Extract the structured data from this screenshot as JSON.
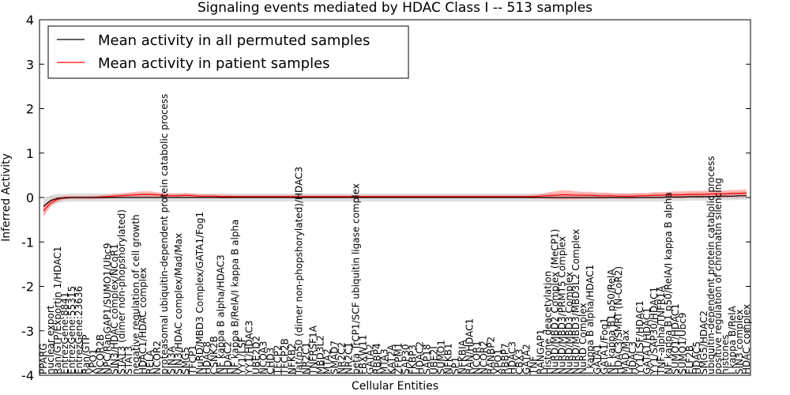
{
  "chart_data": {
    "type": "line",
    "title": "Signaling events mediated by HDAC Class I -- 513 samples",
    "xlabel": "Cellular Entities",
    "ylabel": "Inferred Activity",
    "ylim": [
      -4,
      4
    ],
    "yticks": [
      -4,
      -3,
      -2,
      -1,
      0,
      1,
      2,
      3,
      4
    ],
    "grid": false,
    "legend_position": "top-left",
    "legend": [
      {
        "name": "Mean activity in all permuted samples",
        "color": "#000000"
      },
      {
        "name": "Mean activity in patient samples",
        "color": "#ff0000"
      }
    ],
    "categories": [
      "PPARG",
      "nuclear export",
      "Ran/GTP/Exportin 1/HDAC1",
      "EntrezGene:8841",
      "EntrezGene:55315",
      "EntrezGene:23636",
      "Ran/GTP",
      "XPO1",
      "NCOR2B",
      "NPC/RanGAP1/SUMO1/Ubc9",
      "SIN3/HDAC complex/NCoR1",
      "STAT3 (dimer non-phopshorylated)",
      "STAT3",
      "negative regulation of cell growth",
      "HDAC1/HDAC complex",
      "RELA",
      "NCOR2",
      "proteasomal ubiquitin-dependent protein catabolic process",
      "SIN3A",
      "SIN3/HDAC complex/Mad/Max",
      "SMG5",
      "TFCP1",
      "NuRD/MBD3 Complex/GATA1/Fog1",
      "HDAC8",
      "CSNK2B",
      "NF kappa B alpha/HDAC3",
      "HDAC2",
      "NF kappa B/RelA/I kappa B alpha",
      "YY1/LSF",
      "YY1/HDAC3",
      "UBE2D2",
      "NCOA3",
      "CHD3",
      "TFCP2",
      "TFCP2B",
      "NFKB2",
      "Tat/p50 (dimer non-phopshorylated)/HDAC3",
      "NR2C1",
      "TNFRSF1A",
      "MBD3L2",
      "MTA2",
      "SMAD7",
      "NR2C2",
      "NR2C1",
      "beta TrCP1/SCF ubiquitin ligase complex",
      "FBXW11",
      "GATA2",
      "RBBP4",
      "MTA3",
      "KAT2A",
      "ZFPM1",
      "SAP30",
      "FKBP3",
      "HDAC2",
      "SAP18",
      "UBE2I",
      "SUMO1",
      "NFKB1",
      "SP1",
      "NFKBIA",
      "RAN/HDAC1",
      "NCOR1",
      "NCOR2",
      "RANBP2",
      "XPO1",
      "RBBP7",
      "HDAC3",
      "CBX3",
      "GATA2",
      "TNF",
      "RANGAP1",
      "Histone deacetylation",
      "NuRD/MBD2 Complex (MeCP1)",
      "NuRD/MBD3/PRMT5 Complex",
      "NuRD/MBD3 Complex",
      "NuRD/MBD3/MBD3L2 Complex",
      "NuRD Complex",
      "I kappa B alpha/HDAC1",
      "GATA1",
      "GATA1/Fog1",
      "NF kappa B1 p50/RelA",
      "HDAC3/SMRT (N-CoR2)",
      "MAD/Max",
      "HDAC3",
      "YY1/LSF/HDAC1",
      "GATA1/HDAC1",
      "YY1/SAP30/HDAC1",
      "TNF-alpha/TNFR1A",
      "NF kappa B1 p50/RelA/I kappa B alpha",
      "SUMO1/HDAC1",
      "SUMO1/Ubc9",
      "ELF2B",
      "HDAC5",
      "SMG5/HDAC2",
      "ubiquitin-dependent protein catabolic process",
      "positive regulation of chromatin silencing",
      "histones",
      "I kappa B/RelA",
      "SIN3 complex",
      "HDAC complex"
    ],
    "patient_mean": [
      -0.3,
      -0.12,
      -0.04,
      0.0,
      0.0,
      0.0,
      0.0,
      0.0,
      0.01,
      0.02,
      0.03,
      0.04,
      0.05,
      0.06,
      0.07,
      0.07,
      0.06,
      0.05,
      0.04,
      0.04,
      0.05,
      0.04,
      0.03,
      0.03,
      0.03,
      0.02,
      0.02,
      0.02,
      0.02,
      0.02,
      0.02,
      0.02,
      0.02,
      0.02,
      0.02,
      0.02,
      0.02,
      0.02,
      0.02,
      0.02,
      0.02,
      0.02,
      0.02,
      0.02,
      0.02,
      0.02,
      0.02,
      0.02,
      0.02,
      0.02,
      0.02,
      0.02,
      0.02,
      0.02,
      0.02,
      0.02,
      0.02,
      0.02,
      0.02,
      0.02,
      0.02,
      0.02,
      0.02,
      0.02,
      0.02,
      0.02,
      0.02,
      0.02,
      0.02,
      0.02,
      0.03,
      0.04,
      0.05,
      0.06,
      0.06,
      0.05,
      0.05,
      0.05,
      0.04,
      0.04,
      0.04,
      0.03,
      0.03,
      0.03,
      0.04,
      0.04,
      0.05,
      0.05,
      0.06,
      0.06,
      0.06,
      0.07,
      0.07,
      0.07,
      0.08,
      0.08,
      0.08,
      0.09,
      0.09,
      0.1
    ],
    "permuted_mean": [
      -0.2,
      -0.07,
      -0.02,
      -0.01,
      0.0,
      0.0,
      0.0,
      0.0,
      0.0,
      0.0,
      0.0,
      0.0,
      0.0,
      0.0,
      0.0,
      0.0,
      0.0,
      0.0,
      0.0,
      0.0,
      0.0,
      0.0,
      0.0,
      0.0,
      0.0,
      0.0,
      0.0,
      0.0,
      0.0,
      0.0,
      0.0,
      0.0,
      0.0,
      0.0,
      0.0,
      0.0,
      0.0,
      0.0,
      0.0,
      0.0,
      0.0,
      0.0,
      0.0,
      0.0,
      0.0,
      0.0,
      0.0,
      0.0,
      0.0,
      0.0,
      0.0,
      0.0,
      0.0,
      0.0,
      0.0,
      0.0,
      0.0,
      0.0,
      0.0,
      0.0,
      0.0,
      0.0,
      0.0,
      0.0,
      0.0,
      0.0,
      0.0,
      0.0,
      0.0,
      0.0,
      0.0,
      0.0,
      0.0,
      0.0,
      0.0,
      0.0,
      0.0,
      0.0,
      0.0,
      0.0,
      0.0,
      0.0,
      0.0,
      0.0,
      0.0,
      0.0,
      0.0,
      0.0,
      0.01,
      0.01,
      0.01,
      0.02,
      0.02,
      0.02,
      0.02,
      0.03,
      0.03,
      0.03,
      0.04,
      0.04
    ],
    "permuted_band_halfwidth": [
      0.16,
      0.12,
      0.1,
      0.09,
      0.09,
      0.09,
      0.09,
      0.09,
      0.09,
      0.09,
      0.09,
      0.09,
      0.09,
      0.09,
      0.09,
      0.09,
      0.09,
      0.09,
      0.09,
      0.09,
      0.09,
      0.09,
      0.09,
      0.09,
      0.09,
      0.09,
      0.09,
      0.09,
      0.09,
      0.09,
      0.09,
      0.09,
      0.09,
      0.09,
      0.09,
      0.09,
      0.09,
      0.09,
      0.09,
      0.09,
      0.09,
      0.09,
      0.09,
      0.09,
      0.09,
      0.09,
      0.09,
      0.09,
      0.09,
      0.09,
      0.09,
      0.09,
      0.09,
      0.09,
      0.09,
      0.09,
      0.09,
      0.09,
      0.09,
      0.09,
      0.09,
      0.09,
      0.09,
      0.09,
      0.09,
      0.09,
      0.09,
      0.09,
      0.09,
      0.09,
      0.09,
      0.09,
      0.09,
      0.09,
      0.09,
      0.09,
      0.09,
      0.09,
      0.09,
      0.09,
      0.09,
      0.09,
      0.09,
      0.09,
      0.09,
      0.09,
      0.09,
      0.09,
      0.09,
      0.09,
      0.09,
      0.09,
      0.09,
      0.09,
      0.09,
      0.09,
      0.09,
      0.09,
      0.09,
      0.09
    ],
    "patient_band_halfwidth": [
      0.14,
      0.08,
      0.05,
      0.04,
      0.04,
      0.04,
      0.04,
      0.04,
      0.04,
      0.04,
      0.05,
      0.05,
      0.06,
      0.07,
      0.07,
      0.07,
      0.06,
      0.05,
      0.05,
      0.05,
      0.05,
      0.05,
      0.04,
      0.04,
      0.04,
      0.04,
      0.04,
      0.03,
      0.03,
      0.03,
      0.03,
      0.03,
      0.03,
      0.03,
      0.03,
      0.03,
      0.03,
      0.03,
      0.03,
      0.03,
      0.03,
      0.03,
      0.03,
      0.03,
      0.03,
      0.03,
      0.03,
      0.03,
      0.03,
      0.03,
      0.03,
      0.03,
      0.03,
      0.03,
      0.03,
      0.03,
      0.03,
      0.03,
      0.03,
      0.03,
      0.03,
      0.03,
      0.03,
      0.03,
      0.03,
      0.03,
      0.03,
      0.03,
      0.03,
      0.04,
      0.05,
      0.07,
      0.09,
      0.1,
      0.1,
      0.09,
      0.08,
      0.08,
      0.07,
      0.07,
      0.06,
      0.06,
      0.06,
      0.06,
      0.06,
      0.06,
      0.07,
      0.07,
      0.07,
      0.08,
      0.08,
      0.08,
      0.08,
      0.08,
      0.08,
      0.08,
      0.08,
      0.08,
      0.08,
      0.08
    ]
  }
}
